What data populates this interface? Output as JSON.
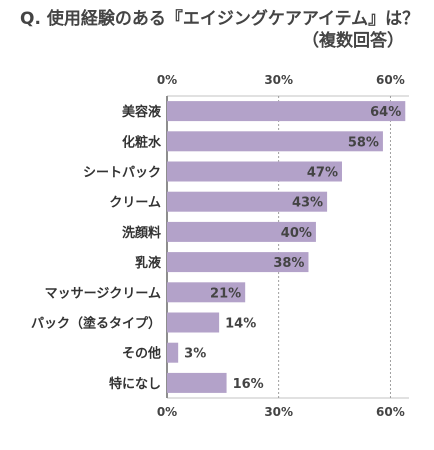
{
  "title_line1": "Q. 使用経験のある『エイジングケアアイテム』は？",
  "title_line2": "（複数回答）",
  "colors": {
    "bar": "#b3a2c9",
    "grid": "#888888",
    "axis": "#444444"
  },
  "chart_data": {
    "type": "bar",
    "orientation": "horizontal",
    "categories": [
      "美容液",
      "化粧水",
      "シートパック",
      "クリーム",
      "洗顔料",
      "乳液",
      "マッサージクリーム",
      "パック（塗るタイプ）",
      "その他",
      "特になし"
    ],
    "values": [
      64,
      58,
      47,
      43,
      40,
      38,
      21,
      14,
      3,
      16
    ],
    "value_suffix": "%",
    "xlim": [
      0,
      65
    ],
    "xticks": [
      0,
      30,
      60
    ],
    "xtick_labels": [
      "0%",
      "30%",
      "60%"
    ],
    "grid": true,
    "title": "Q. 使用経験のある『エイジングケアアイテム』は？（複数回答）",
    "xlabel": "",
    "ylabel": ""
  }
}
